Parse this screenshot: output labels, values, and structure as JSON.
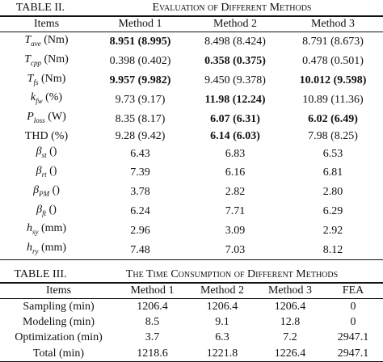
{
  "table2": {
    "label": "TABLE II.",
    "title": "Evaluation of Different Methods",
    "headers": [
      "Items",
      "Method 1",
      "Method 2",
      "Method 3"
    ],
    "rows": [
      {
        "item": {
          "sym": "T",
          "sub": "ave",
          "unit": "(Nm)"
        },
        "cells": [
          "8.951 (8.995)",
          "8.498 (8.424)",
          "8.791 (8.673)"
        ],
        "bold": [
          true,
          false,
          false
        ]
      },
      {
        "item": {
          "sym": "T",
          "sub": "cpp",
          "unit": "(Nm)"
        },
        "cells": [
          "0.398 (0.402)",
          "0.358 (0.375)",
          "0.478 (0.501)"
        ],
        "bold": [
          false,
          true,
          false
        ]
      },
      {
        "item": {
          "sym": "T",
          "sub": "fs",
          "unit": "(Nm)"
        },
        "cells": [
          "9.957 (9.982)",
          "9.450 (9.378)",
          "10.012 (9.598)"
        ],
        "bold": [
          true,
          false,
          true
        ]
      },
      {
        "item": {
          "sym": "k",
          "sub": "fw",
          "unit": "(%)"
        },
        "cells": [
          "9.73 (9.17)",
          "11.98 (12.24)",
          "10.89 (11.36)"
        ],
        "bold": [
          false,
          true,
          false
        ]
      },
      {
        "item": {
          "sym": "P",
          "sub": "loss",
          "unit": "(W)"
        },
        "cells": [
          "8.35 (8.17)",
          "6.07 (6.31)",
          "6.02 (6.49)"
        ],
        "bold": [
          false,
          true,
          true
        ]
      },
      {
        "item": {
          "sym": "THD",
          "sub": "",
          "unit": "(%)"
        },
        "cells": [
          "9.28 (9.42)",
          "6.14 (6.03)",
          "7.98 (8.25)"
        ],
        "bold": [
          false,
          true,
          false
        ]
      },
      {
        "item": {
          "sym": "β",
          "sub": "st",
          "unit": "()"
        },
        "cells": [
          "6.43",
          "6.83",
          "6.53"
        ],
        "bold": [
          false,
          false,
          false
        ]
      },
      {
        "item": {
          "sym": "β",
          "sub": "rt",
          "unit": "()"
        },
        "cells": [
          "7.39",
          "6.16",
          "6.81"
        ],
        "bold": [
          false,
          false,
          false
        ]
      },
      {
        "item": {
          "sym": "β",
          "sub": "PM",
          "unit": "()"
        },
        "cells": [
          "3.78",
          "2.82",
          "2.80"
        ],
        "bold": [
          false,
          false,
          false
        ]
      },
      {
        "item": {
          "sym": "β",
          "sub": "ft",
          "unit": "()"
        },
        "cells": [
          "6.24",
          "7.71",
          "6.29"
        ],
        "bold": [
          false,
          false,
          false
        ]
      },
      {
        "item": {
          "sym": "h",
          "sub": "sy",
          "unit": "(mm)"
        },
        "cells": [
          "2.96",
          "3.09",
          "2.92"
        ],
        "bold": [
          false,
          false,
          false
        ]
      },
      {
        "item": {
          "sym": "h",
          "sub": "ry",
          "unit": "(mm)"
        },
        "cells": [
          "7.48",
          "7.03",
          "8.12"
        ],
        "bold": [
          false,
          false,
          false
        ]
      }
    ]
  },
  "table3": {
    "label": "TABLE III.",
    "title": "The Time Consumption of Different Methods",
    "headers": [
      "Items",
      "Method 1",
      "Method 2",
      "Method 3",
      "FEA"
    ],
    "rows": [
      [
        "Sampling (min)",
        "1206.4",
        "1206.4",
        "1206.4",
        "0"
      ],
      [
        "Modeling (min)",
        "8.5",
        "9.1",
        "12.8",
        "0"
      ],
      [
        "Optimization (min)",
        "3.7",
        "6.3",
        "7.2",
        "2947.1"
      ],
      [
        "Total (min)",
        "1218.6",
        "1221.8",
        "1226.4",
        "2947.1"
      ]
    ]
  }
}
